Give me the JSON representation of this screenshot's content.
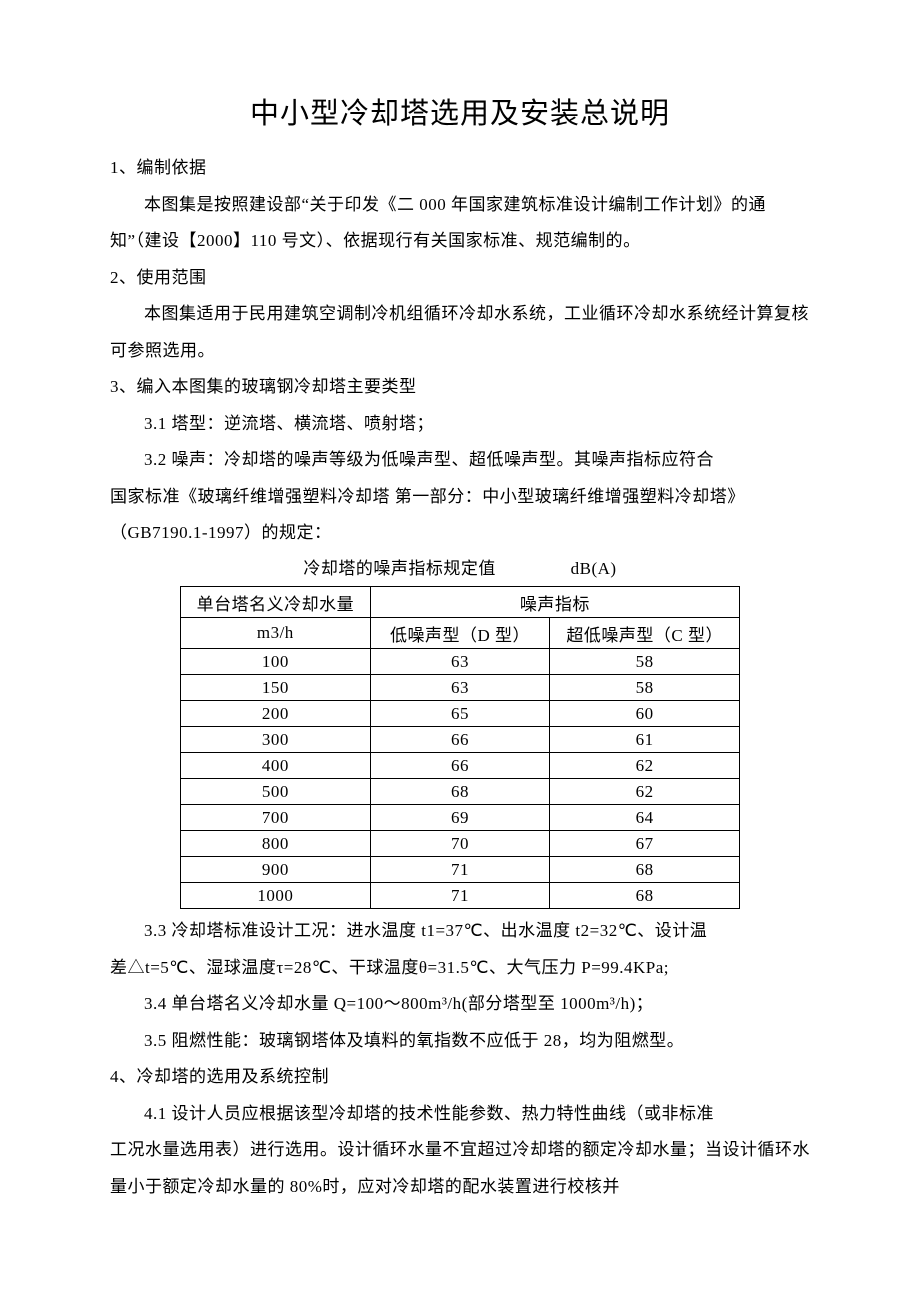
{
  "title": "中小型冷却塔选用及安装总说明",
  "s1": {
    "heading": "1、编制依据",
    "p1": "本图集是按照建设部“关于印发《二 000 年国家建筑标准设计编制工作计划》的通知”（建设【2000】110 号文）、依据现行有关国家标准、规范编制的。"
  },
  "s2": {
    "heading": "2、使用范围",
    "p1": "本图集适用于民用建筑空调制冷机组循环冷却水系统，工业循环冷却水系统经计算复核可参照选用。"
  },
  "s3": {
    "heading": "3、编入本图集的玻璃钢冷却塔主要类型",
    "p31": "3.1 塔型：逆流塔、横流塔、喷射塔；",
    "p32a": "3.2 噪声：冷却塔的噪声等级为低噪声型、超低噪声型。其噪声指标应符合",
    "p32b": "国家标准《玻璃纤维增强塑料冷却塔 第一部分：中小型玻璃纤维增强塑料冷却塔》（GB7190.1-1997）的规定：",
    "table_caption": "冷却塔的噪声指标规定值",
    "table_unit": "dB(A)",
    "table": {
      "header_col1_line1": "单台塔名义冷却水量",
      "header_col1_line2": "m3/h",
      "header_merged": "噪声指标",
      "header_col2": "低噪声型（D 型）",
      "header_col3": "超低噪声型（C 型）",
      "rows": [
        {
          "c1": "100",
          "c2": "63",
          "c3": "58"
        },
        {
          "c1": "150",
          "c2": "63",
          "c3": "58"
        },
        {
          "c1": "200",
          "c2": "65",
          "c3": "60"
        },
        {
          "c1": "300",
          "c2": "66",
          "c3": "61"
        },
        {
          "c1": "400",
          "c2": "66",
          "c3": "62"
        },
        {
          "c1": "500",
          "c2": "68",
          "c3": "62"
        },
        {
          "c1": "700",
          "c2": "69",
          "c3": "64"
        },
        {
          "c1": "800",
          "c2": "70",
          "c3": "67"
        },
        {
          "c1": "900",
          "c2": "71",
          "c3": "68"
        },
        {
          "c1": "1000",
          "c2": "71",
          "c3": "68"
        }
      ]
    },
    "p33a": "3.3 冷却塔标准设计工况：进水温度 t1=37℃、出水温度 t2=32℃、设计温",
    "p33b": "差△t=5℃、湿球温度τ=28℃、干球温度θ=31.5℃、大气压力 P=99.4KPa;",
    "p34": "3.4 单台塔名义冷却水量 Q=100～800m³/h(部分塔型至 1000m³/h)；",
    "p35": "3.5 阻燃性能：玻璃钢塔体及填料的氧指数不应低于 28，均为阻燃型。"
  },
  "s4": {
    "heading": "4、冷却塔的选用及系统控制",
    "p41a": "4.1 设计人员应根据该型冷却塔的技术性能参数、热力特性曲线（或非标准",
    "p41b": "工况水量选用表）进行选用。设计循环水量不宜超过冷却塔的额定冷却水量；当设计循环水量小于额定冷却水量的 80%时，应对冷却塔的配水装置进行校核并"
  }
}
